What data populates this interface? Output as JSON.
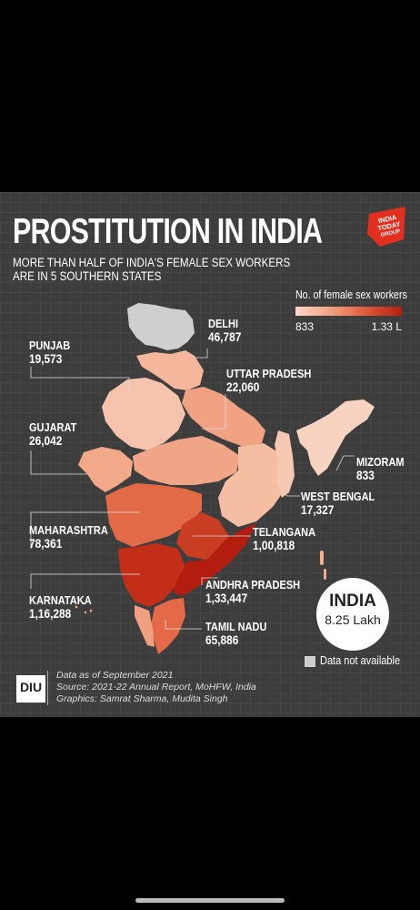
{
  "title": "PROSTITUTION IN INDIA",
  "subtitle": "MORE THAN HALF OF INDIA'S FEMALE SEX WORKERS\nARE IN 5 SOUTHERN STATES",
  "logo": {
    "line1": "INDIA",
    "line2": "TODAY",
    "line3": "GROUP"
  },
  "legend": {
    "title": "No. of female sex workers",
    "min": "833",
    "max": "1.33 L",
    "color_low": "#fbd7c6",
    "color_high": "#b21d10"
  },
  "states": [
    {
      "name": "PUNJAB",
      "value": "19,573"
    },
    {
      "name": "DELHI",
      "value": "46,787"
    },
    {
      "name": "UTTAR PRADESH",
      "value": "22,060"
    },
    {
      "name": "GUJARAT",
      "value": "26,042"
    },
    {
      "name": "MIZORAM",
      "value": "833"
    },
    {
      "name": "WEST BENGAL",
      "value": "17,327"
    },
    {
      "name": "MAHARASHTRA",
      "value": "78,361"
    },
    {
      "name": "TELANGANA",
      "value": "1,00,818"
    },
    {
      "name": "ANDHRA PRADESH",
      "value": "1,33,447"
    },
    {
      "name": "KARNATAKA",
      "value": "1,16,288"
    },
    {
      "name": "TAMIL NADU",
      "value": "65,886"
    }
  ],
  "total": {
    "label": "INDIA",
    "value": "8.25 Lakh"
  },
  "no_data": {
    "label": "Data not available",
    "color": "#cfcfcf"
  },
  "footer": {
    "badge": "DIU",
    "line1": "Data as of September 2021",
    "line2": "Source: 2021-22 Annual Report, MoHFW, India",
    "line3": "Graphics: Samrat Sharma, Mudita Singh"
  }
}
